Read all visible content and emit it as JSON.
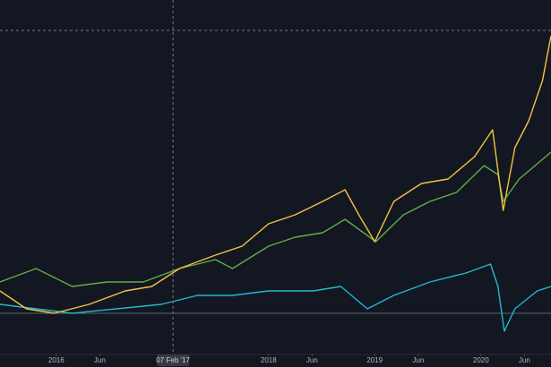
{
  "chart_data": {
    "type": "line",
    "xlim": [
      2015.47,
      2020.66
    ],
    "ylim": [
      -22.5,
      175
    ],
    "baseline": 0,
    "crosshair": {
      "value": 2017.1,
      "label": "07 Feb '17"
    },
    "xticks": [
      {
        "value": 2016,
        "label": "2016"
      },
      {
        "value": 2016.41,
        "label": "Jun"
      },
      {
        "value": 2018,
        "label": "2018"
      },
      {
        "value": 2018.41,
        "label": "Jun"
      },
      {
        "value": 2019,
        "label": "2019"
      },
      {
        "value": 2019.41,
        "label": "Jun"
      },
      {
        "value": 2020,
        "label": "2020"
      },
      {
        "value": 2020.41,
        "label": "Jun"
      }
    ],
    "series": [
      {
        "color": "#22b8cf",
        "x": [
          2015.47,
          2015.81,
          2016.15,
          2016.57,
          2016.99,
          2017.33,
          2017.66,
          2018.0,
          2018.42,
          2018.68,
          2018.93,
          2019.18,
          2019.52,
          2019.86,
          2020.09,
          2020.16,
          2020.22,
          2020.32,
          2020.53,
          2020.66
        ],
        "values": [
          5,
          2.5,
          0,
          2.5,
          5,
          10,
          10,
          12.5,
          12.5,
          15,
          2.5,
          10,
          17.5,
          22.5,
          27.5,
          15,
          -10,
          2.5,
          12.5,
          15
        ]
      },
      {
        "color": "#5fae4a",
        "x": [
          2015.47,
          2015.81,
          2016.15,
          2016.48,
          2016.82,
          2017.16,
          2017.5,
          2017.66,
          2018.0,
          2018.25,
          2018.51,
          2018.72,
          2019.01,
          2019.27,
          2019.52,
          2019.77,
          2020.03,
          2020.16,
          2020.21,
          2020.36,
          2020.66
        ],
        "values": [
          17.5,
          25,
          15,
          17.5,
          17.5,
          25,
          30,
          25,
          37.5,
          42.5,
          45,
          52.5,
          40,
          55,
          62.5,
          67.5,
          82.5,
          77.5,
          62.5,
          75,
          90
        ]
      },
      {
        "color": "#f5c242",
        "x": [
          2015.47,
          2015.72,
          2015.98,
          2016.31,
          2016.65,
          2016.9,
          2017.16,
          2017.5,
          2017.75,
          2018.0,
          2018.25,
          2018.51,
          2018.72,
          2018.85,
          2019.0,
          2019.18,
          2019.44,
          2019.69,
          2019.94,
          2020.11,
          2020.21,
          2020.32,
          2020.45,
          2020.58,
          2020.66
        ],
        "values": [
          12.5,
          2.5,
          0,
          5,
          12.5,
          15,
          25,
          32.5,
          37.5,
          50,
          55,
          62.5,
          69,
          55,
          40,
          62.5,
          72.5,
          75,
          87.5,
          102.5,
          57.5,
          92.5,
          107.5,
          130,
          155
        ]
      }
    ]
  }
}
